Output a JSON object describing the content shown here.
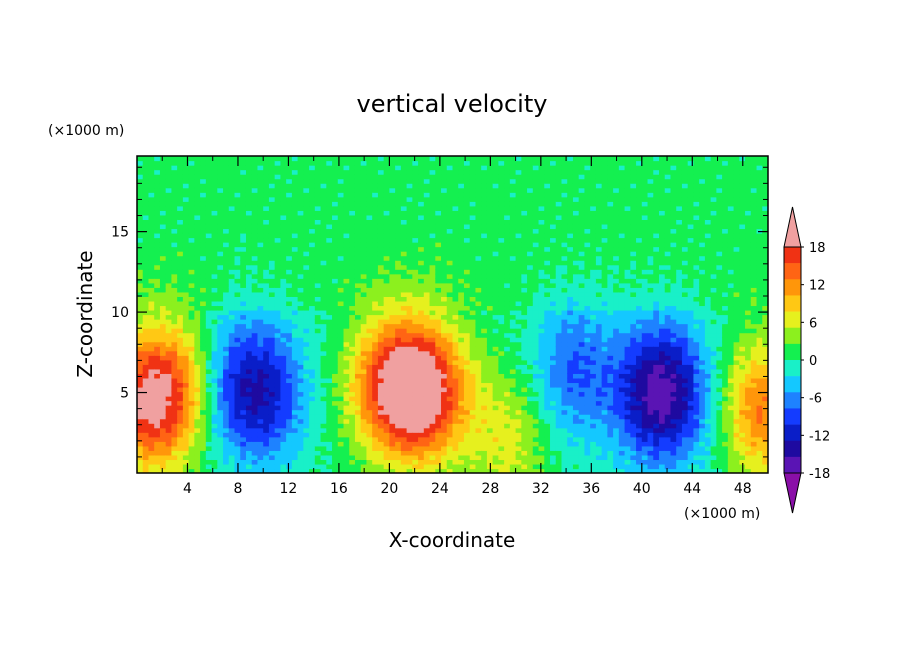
{
  "chart_data": {
    "type": "heatmap",
    "title": "vertical velocity",
    "xlabel": "X-coordinate",
    "ylabel": "Z-coordinate",
    "x_unit": "(×1000 m)",
    "y_unit": "(×1000 m)",
    "xlim": [
      0,
      50
    ],
    "ylim": [
      0,
      19.7
    ],
    "x_ticks": [
      4,
      8,
      12,
      16,
      20,
      24,
      28,
      32,
      36,
      40,
      44,
      48
    ],
    "y_ticks": [
      5,
      10,
      15
    ],
    "colorbar": {
      "labels": [
        18,
        12,
        6,
        0,
        -6,
        -12,
        -18
      ],
      "levels": [
        -21,
        -18,
        -15,
        -12,
        -9,
        -6,
        -3,
        0,
        3,
        6,
        9,
        12,
        15,
        18,
        21
      ],
      "colors": [
        "#8a0fa8",
        "#5a14b4",
        "#1e0aa0",
        "#0a1ec8",
        "#143cff",
        "#1e82ff",
        "#14c8ff",
        "#19f0c8",
        "#14f050",
        "#8cf01e",
        "#e6f01e",
        "#ffc814",
        "#ff960a",
        "#ff6414",
        "#f03214",
        "#f0a0a0"
      ],
      "extend": "both"
    },
    "features": [
      {
        "x": 1.0,
        "z": 4.5,
        "w": 22
      },
      {
        "x": 4.0,
        "z": 6.0,
        "w": 6
      },
      {
        "x": 7.5,
        "z": 5.5,
        "w": -10
      },
      {
        "x": 10.5,
        "z": 5.0,
        "w": -11
      },
      {
        "x": 20.5,
        "z": 5.5,
        "w": 18
      },
      {
        "x": 23.0,
        "z": 5.0,
        "w": 17
      },
      {
        "x": 29.5,
        "z": 2.0,
        "w": 7
      },
      {
        "x": 34.5,
        "z": 6.5,
        "w": -9
      },
      {
        "x": 41.5,
        "z": 5.0,
        "w": -20
      },
      {
        "x": 49.5,
        "z": 4.0,
        "w": 15
      }
    ]
  }
}
